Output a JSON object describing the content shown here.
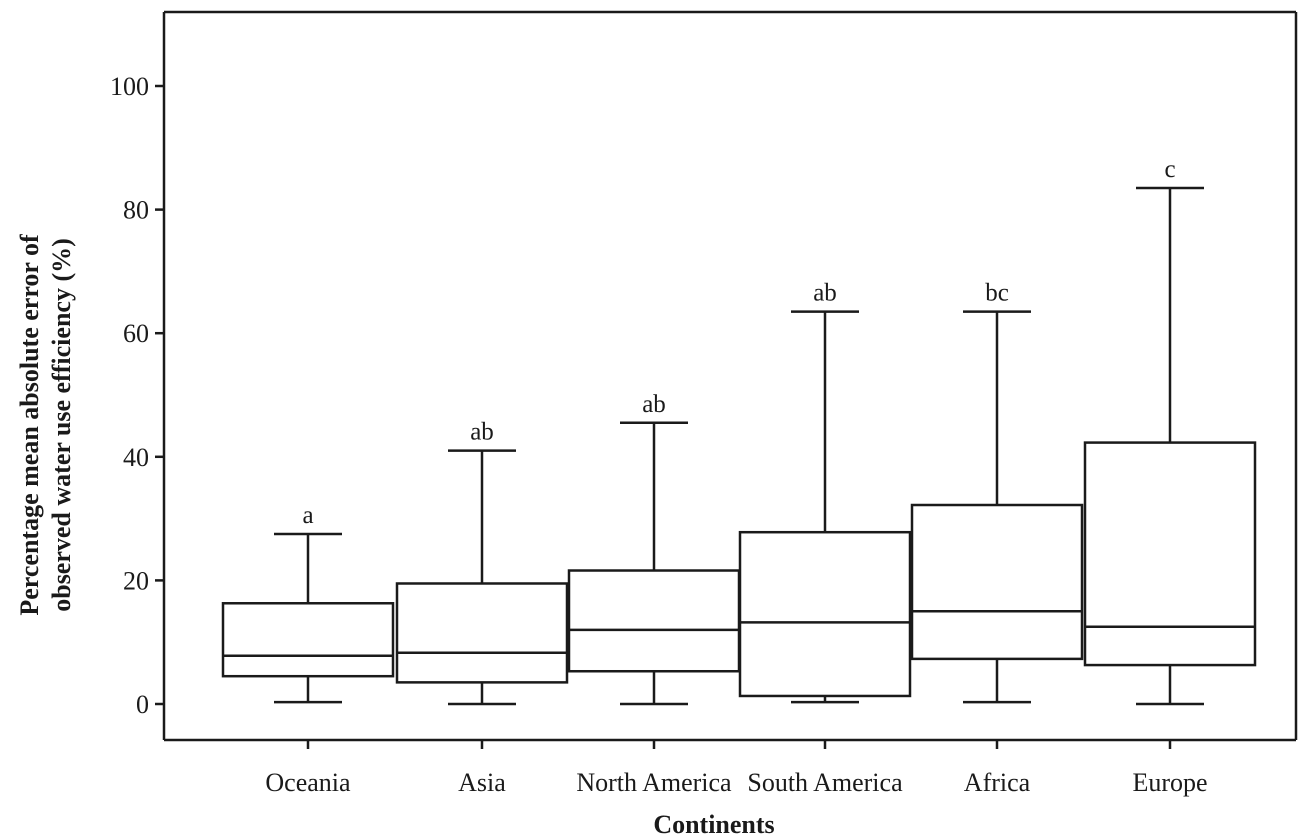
{
  "chart_data": {
    "type": "boxplot",
    "xlabel": "Continents",
    "ylabel_lines": [
      "Percentage mean absolute error of",
      "observed water use efficiency (%)"
    ],
    "ylim": [
      -6,
      112
    ],
    "yticks": [
      0,
      20,
      40,
      60,
      80,
      100
    ],
    "ytick_labels": [
      "0",
      "20",
      "40",
      "60",
      "80",
      "100"
    ],
    "grid": false,
    "categories": [
      "Oceania",
      "Asia",
      "North America",
      "South America",
      "Africa",
      "Europe"
    ],
    "boxes": [
      {
        "category": "Oceania",
        "min": 0.3,
        "q1": 4.5,
        "median": 7.8,
        "q3": 16.3,
        "max": 27.5,
        "group": "a"
      },
      {
        "category": "Asia",
        "min": 0.0,
        "q1": 3.5,
        "median": 8.3,
        "q3": 19.5,
        "max": 41.0,
        "group": "ab"
      },
      {
        "category": "North America",
        "min": 0.0,
        "q1": 5.3,
        "median": 12.0,
        "q3": 21.6,
        "max": 45.5,
        "group": "ab"
      },
      {
        "category": "South America",
        "min": 0.3,
        "q1": 1.3,
        "median": 13.2,
        "q3": 27.8,
        "max": 63.5,
        "group": "ab"
      },
      {
        "category": "Africa",
        "min": 0.3,
        "q1": 7.3,
        "median": 15.0,
        "q3": 32.2,
        "max": 63.5,
        "group": "bc"
      },
      {
        "category": "Europe",
        "min": 0.0,
        "q1": 6.3,
        "median": 12.5,
        "q3": 42.3,
        "max": 83.5,
        "group": "c"
      }
    ]
  }
}
